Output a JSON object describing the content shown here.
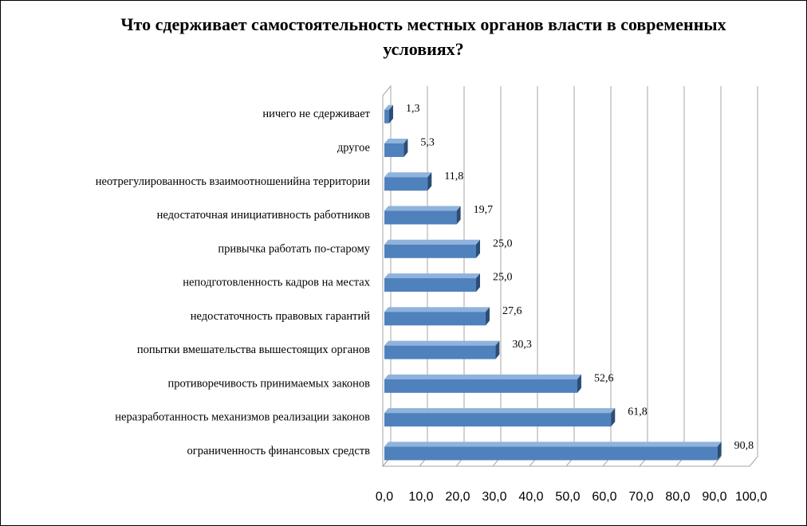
{
  "chart_data": {
    "type": "bar",
    "orientation": "horizontal",
    "title": "Что сдерживает самостоятельность местных органов власти в современных условиях?",
    "categories": [
      "ничего не сдерживает",
      "другое",
      "неотрегулированность взаимоотношенийна территории",
      "недостаточная инициативность работников",
      "привычка работать по-старому",
      "неподготовленность кадров на местах",
      "недостаточность правовых гарантий",
      "попытки вмешательства вышестоящих органов",
      "противоречивость принимаемых законов",
      "неразработанность механизмов реализации законов",
      "ограниченность финансовых средств"
    ],
    "values": [
      1.3,
      5.3,
      11.8,
      19.7,
      25.0,
      25.0,
      27.6,
      30.3,
      52.6,
      61.8,
      90.8
    ],
    "value_labels": [
      "1,3",
      "5,3",
      "11,8",
      "19,7",
      "25,0",
      "25,0",
      "27,6",
      "30,3",
      "52,6",
      "61,8",
      "90,8"
    ],
    "xlim": [
      0,
      100
    ],
    "xticks": [
      "0,0",
      "10,0",
      "20,0",
      "30,0",
      "40,0",
      "50,0",
      "60,0",
      "70,0",
      "80,0",
      "90,0",
      "100,0"
    ],
    "grid": true,
    "legend": "none",
    "colors": {
      "bar_front": "#4f81bd",
      "bar_top": "#8fb3dc",
      "bar_side": "#2c4d75",
      "grid": "#a6a6a6",
      "text": "#000000"
    }
  }
}
